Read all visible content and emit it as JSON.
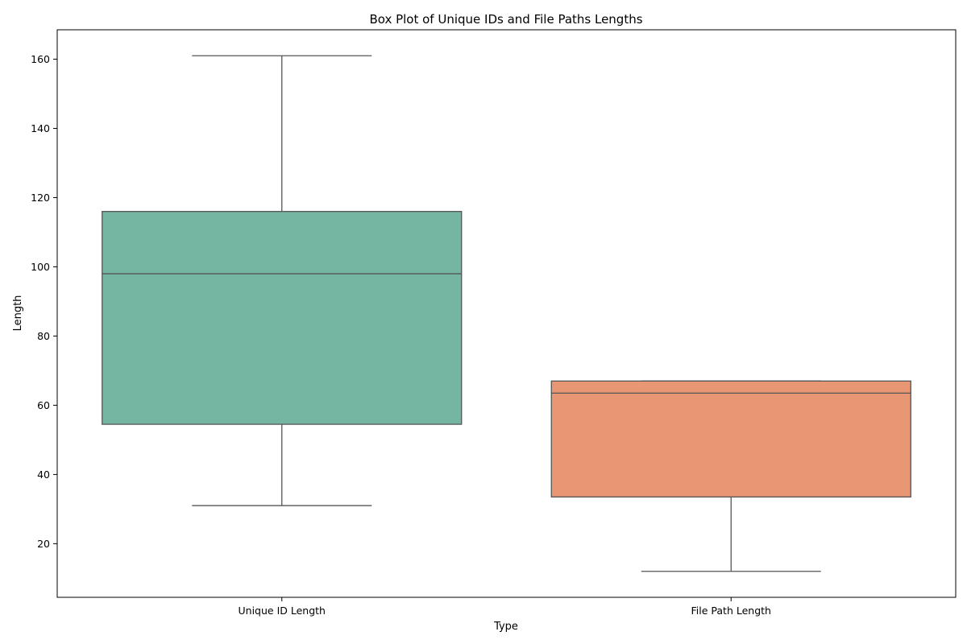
{
  "chart_data": {
    "type": "box",
    "title": "Box Plot of Unique IDs and File Paths Lengths",
    "xlabel": "Type",
    "ylabel": "Length",
    "ylim": [
      4.5,
      168.5
    ],
    "yticks": [
      20,
      40,
      60,
      80,
      100,
      120,
      140,
      160
    ],
    "grid": false,
    "legend": "none",
    "categories": [
      "Unique ID Length",
      "File Path Length"
    ],
    "boxes": [
      {
        "category": "Unique ID Length",
        "whisker_low": 31,
        "q1": 54.5,
        "median": 98,
        "q3": 116,
        "whisker_high": 161,
        "color": "#74b6a2"
      },
      {
        "category": "File Path Length",
        "whisker_low": 12,
        "q1": 33.5,
        "median": 63.5,
        "q3": 67,
        "whisker_high": 67,
        "color": "#e99675"
      }
    ],
    "line_color": "#555555"
  }
}
